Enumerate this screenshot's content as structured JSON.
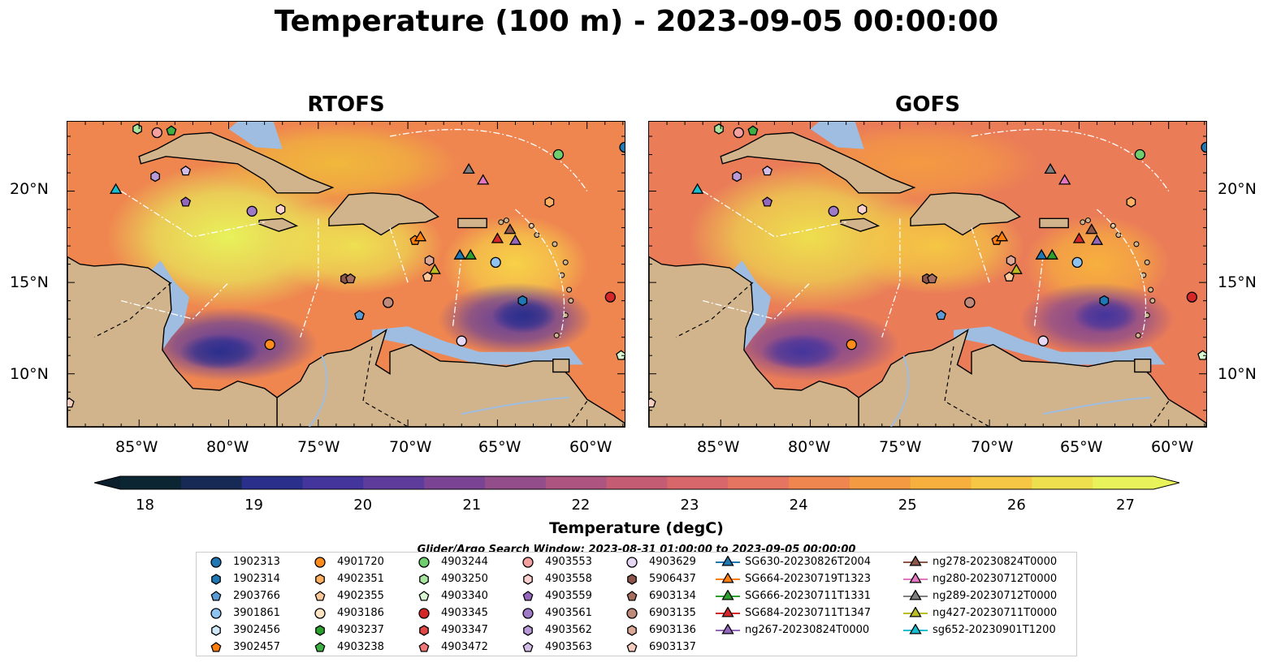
{
  "title": "Temperature (100 m) - 2023-09-05 00:00:00",
  "panels": [
    {
      "title": "RTOFS"
    },
    {
      "title": "GOFS"
    }
  ],
  "lat_ticks": [
    "20°N",
    "15°N",
    "10°N"
  ],
  "lon_ticks": [
    "85°W",
    "80°W",
    "75°W",
    "70°W",
    "65°W",
    "60°W"
  ],
  "colorbar": {
    "ticks": [
      "18",
      "19",
      "20",
      "21",
      "22",
      "23",
      "24",
      "25",
      "26",
      "27"
    ],
    "title": "Temperature (degC)",
    "range": [
      18,
      27
    ],
    "colors": [
      "#0b2533",
      "#172a55",
      "#2a2f8c",
      "#44359c",
      "#5e3c9c",
      "#7a4394",
      "#944d8b",
      "#ad5580",
      "#c45d74",
      "#d8676b",
      "#e57560",
      "#ef8650",
      "#f49a43",
      "#f7b03e",
      "#f5c744",
      "#eedf4e",
      "#e8f25a"
    ]
  },
  "search_window": "Glider/Argo Search Window: 2023-08-31 01:00:00 to 2023-09-05 00:00:00",
  "legend": [
    {
      "label": "1902313",
      "color": "#1f77b4",
      "shape": "circle"
    },
    {
      "label": "1902314",
      "color": "#1f77b4",
      "shape": "hexagon"
    },
    {
      "label": "2903766",
      "color": "#5b9bd5",
      "shape": "pentagon"
    },
    {
      "label": "3901861",
      "color": "#8fc3ef",
      "shape": "circle"
    },
    {
      "label": "3902456",
      "color": "#cfe8f7",
      "shape": "hexagon"
    },
    {
      "label": "3902457",
      "color": "#ff7f0e",
      "shape": "pentagon"
    },
    {
      "label": "4901720",
      "color": "#ff8c1a",
      "shape": "circle"
    },
    {
      "label": "4902351",
      "color": "#ffb060",
      "shape": "hexagon"
    },
    {
      "label": "4902355",
      "color": "#ffc89a",
      "shape": "pentagon"
    },
    {
      "label": "4903186",
      "color": "#ffe4c4",
      "shape": "circle"
    },
    {
      "label": "4903237",
      "color": "#2ca02c",
      "shape": "hexagon"
    },
    {
      "label": "4903238",
      "color": "#3cb043",
      "shape": "pentagon"
    },
    {
      "label": "4903244",
      "color": "#6fcf6f",
      "shape": "circle"
    },
    {
      "label": "4903250",
      "color": "#a8e6a0",
      "shape": "hexagon"
    },
    {
      "label": "4903340",
      "color": "#d9f7d2",
      "shape": "pentagon"
    },
    {
      "label": "4903345",
      "color": "#d62728",
      "shape": "circle"
    },
    {
      "label": "4903347",
      "color": "#e04848",
      "shape": "hexagon"
    },
    {
      "label": "4903472",
      "color": "#f07878",
      "shape": "pentagon"
    },
    {
      "label": "4903553",
      "color": "#f4a0a0",
      "shape": "circle"
    },
    {
      "label": "4903558",
      "color": "#fbd0d0",
      "shape": "hexagon"
    },
    {
      "label": "4903559",
      "color": "#9467bd",
      "shape": "pentagon"
    },
    {
      "label": "4903561",
      "color": "#9f7ac6",
      "shape": "circle"
    },
    {
      "label": "4903562",
      "color": "#b89ad6",
      "shape": "hexagon"
    },
    {
      "label": "4903563",
      "color": "#d2bde6",
      "shape": "pentagon"
    },
    {
      "label": "4903629",
      "color": "#e6d8f4",
      "shape": "circle"
    },
    {
      "label": "5906437",
      "color": "#8c564b",
      "shape": "hexagon"
    },
    {
      "label": "6903134",
      "color": "#a66e60",
      "shape": "pentagon"
    },
    {
      "label": "6903135",
      "color": "#c08a7a",
      "shape": "circle"
    },
    {
      "label": "6903136",
      "color": "#dba898",
      "shape": "hexagon"
    },
    {
      "label": "6903137",
      "color": "#f5cdbf",
      "shape": "pentagon"
    },
    {
      "label": "SG630-20230826T2004",
      "color": "#1f77b4",
      "shape": "triangle"
    },
    {
      "label": "SG664-20230719T1323",
      "color": "#ff7f0e",
      "shape": "triangle"
    },
    {
      "label": "SG666-20230711T1331",
      "color": "#2ca02c",
      "shape": "triangle"
    },
    {
      "label": "SG684-20230711T1347",
      "color": "#d62728",
      "shape": "triangle"
    },
    {
      "label": "ng267-20230824T0000",
      "color": "#9467bd",
      "shape": "triangle"
    },
    {
      "label": "ng278-20230824T0000",
      "color": "#8c564b",
      "shape": "triangle"
    },
    {
      "label": "ng280-20230712T0000",
      "color": "#e377c2",
      "shape": "triangle"
    },
    {
      "label": "ng289-20230712T0000",
      "color": "#7f7f7f",
      "shape": "triangle"
    },
    {
      "label": "ng427-20230711T0000",
      "color": "#bcbd22",
      "shape": "triangle"
    },
    {
      "label": "sg652-20230901T1200",
      "color": "#17becf",
      "shape": "triangle"
    }
  ],
  "markers": [
    {
      "id": "1902313",
      "lon": -57.9,
      "lat": 22.4
    },
    {
      "id": "3901861",
      "lon": -65.1,
      "lat": 16.1
    },
    {
      "id": "4901720",
      "lon": -77.7,
      "lat": 11.6
    },
    {
      "id": "4903186",
      "lon": -71.1,
      "lat": 13.9
    },
    {
      "id": "4903244",
      "lon": -61.6,
      "lat": 22.0
    },
    {
      "id": "4903345",
      "lon": -58.7,
      "lat": 14.2
    },
    {
      "id": "4903553",
      "lon": -84.0,
      "lat": 23.2
    },
    {
      "id": "4903561",
      "lon": -78.7,
      "lat": 18.9
    },
    {
      "id": "4903629",
      "lon": -67.0,
      "lat": 11.8
    },
    {
      "id": "6903135",
      "lon": -71.1,
      "lat": 13.9
    },
    {
      "id": "6903137",
      "lon": -88.9,
      "lat": 8.4
    },
    {
      "id": "2903766",
      "lon": -72.7,
      "lat": 13.2
    },
    {
      "id": "4903340",
      "lon": -58.1,
      "lat": 11.0
    },
    {
      "id": "3902457",
      "lon": -69.6,
      "lat": 17.3
    },
    {
      "id": "SG630-20230826T2004",
      "lon": -67.1,
      "lat": 16.5
    },
    {
      "id": "SG664-20230719T1323",
      "lon": -69.3,
      "lat": 17.5
    },
    {
      "id": "SG666-20230711T1331",
      "lon": -66.5,
      "lat": 16.5
    },
    {
      "id": "SG684-20230711T1347",
      "lon": -65.0,
      "lat": 17.4
    },
    {
      "id": "ng267-20230824T0000",
      "lon": -64.0,
      "lat": 17.3
    },
    {
      "id": "ng278-20230824T0000",
      "lon": -64.3,
      "lat": 17.9
    },
    {
      "id": "ng280-20230712T0000",
      "lon": -65.8,
      "lat": 20.6
    },
    {
      "id": "ng289-20230712T0000",
      "lon": -66.6,
      "lat": 21.2
    },
    {
      "id": "ng427-20230711T0000",
      "lon": -68.5,
      "lat": 15.7
    },
    {
      "id": "sg652-20230901T1200",
      "lon": -86.3,
      "lat": 20.1
    },
    {
      "id": "4903559",
      "lon": -82.4,
      "lat": 19.4
    },
    {
      "id": "4903562",
      "lon": -84.1,
      "lat": 20.8
    },
    {
      "id": "4903563",
      "lon": -82.4,
      "lat": 21.1
    },
    {
      "id": "4903558",
      "lon": -77.1,
      "lat": 19.0
    },
    {
      "id": "4903238",
      "lon": -83.2,
      "lat": 23.3
    },
    {
      "id": "4903250",
      "lon": -85.1,
      "lat": 23.4
    },
    {
      "id": "5906437",
      "lon": -73.5,
      "lat": 15.2
    },
    {
      "id": "6903134",
      "lon": -73.2,
      "lat": 15.2
    },
    {
      "id": "6903136",
      "lon": -68.8,
      "lat": 16.2
    },
    {
      "id": "4902355",
      "lon": -68.9,
      "lat": 15.3
    },
    {
      "id": "4902351",
      "lon": -62.1,
      "lat": 19.4
    },
    {
      "id": "1902314",
      "lon": -63.6,
      "lat": 14.0
    }
  ]
}
